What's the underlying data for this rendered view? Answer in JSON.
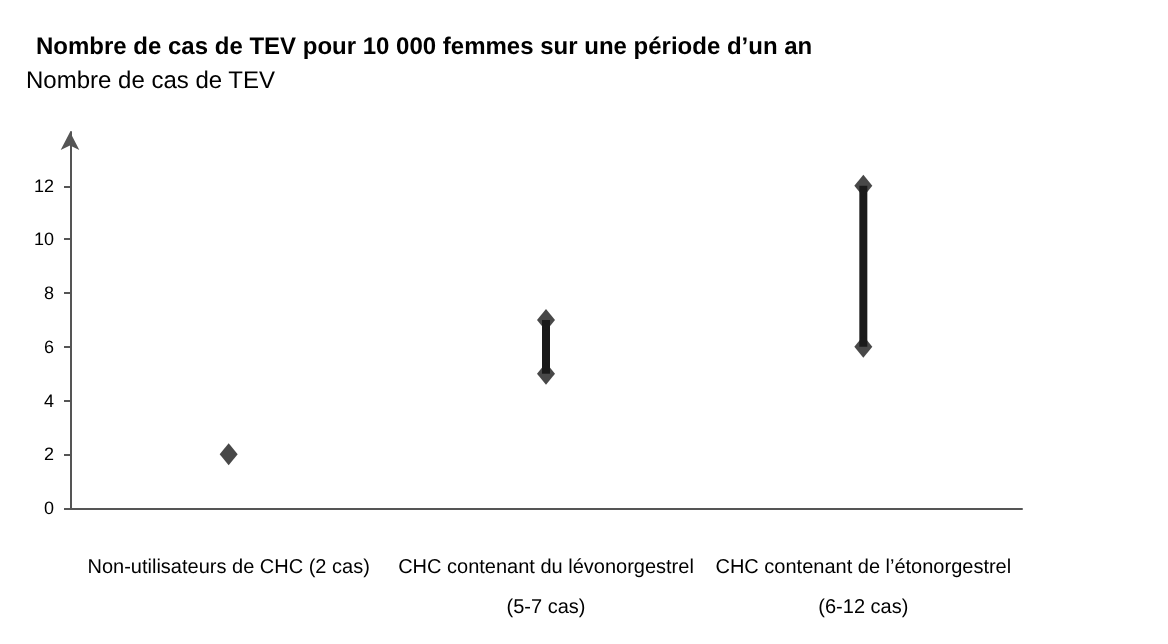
{
  "chart_data": {
    "type": "bar",
    "title": "Nombre de cas de TEV pour 10 000 femmes sur une période d’un an",
    "ylabel": "Nombre de cas de TEV",
    "categories": [
      "Non-utilisateurs de CHC (2 cas)",
      "CHC contenant du lévonorgestrel\n(5-7 cas)",
      "CHC contenant de l’étonorgestrel\n(6-12 cas)"
    ],
    "series": [
      {
        "color": "#1a1a1a",
        "base": [
          null,
          5,
          6
        ],
        "values": [
          null,
          2,
          6
        ]
      },
      {
        "type": "scatter",
        "color": "#1a1a1a",
        "values": [
          2,
          5,
          6
        ]
      },
      {
        "type": "scatter",
        "color": "#1a1a1a",
        "values": [
          null,
          7,
          12
        ]
      }
    ],
    "marker": "diamond",
    "ylim": [
      0,
      14
    ],
    "yticks": [
      0,
      2,
      4,
      6,
      8,
      10,
      12
    ],
    "grid": false
  }
}
